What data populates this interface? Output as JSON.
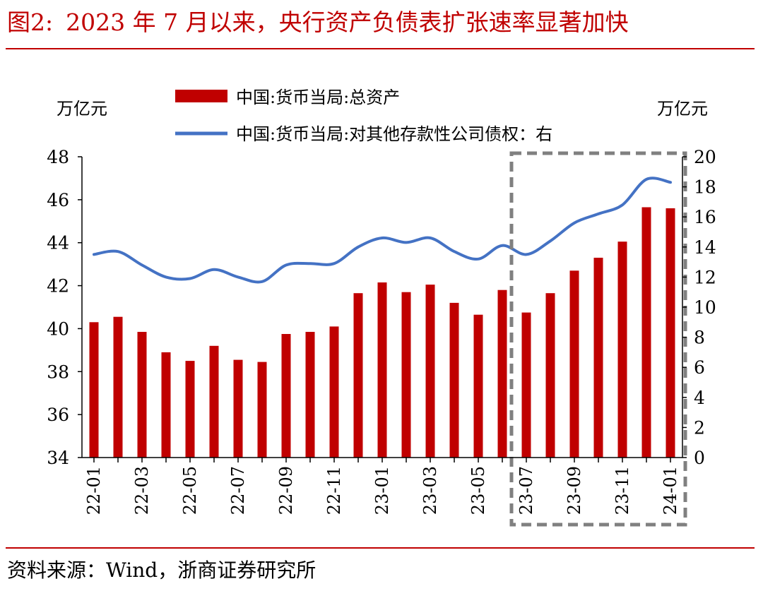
{
  "figure": {
    "number": "图2:",
    "title": "2023 年 7 月以来，央行资产负债表扩张速率显著加快",
    "source": "资料来源：Wind，浙商证券研究所"
  },
  "colors": {
    "bar": "#c00000",
    "line": "#4472c4",
    "title": "#c00000",
    "highlight_box": "#808080"
  },
  "chart_data": {
    "type": "bar",
    "combo": "bar-line dual axis",
    "categories": [
      "22-01",
      "22-02",
      "22-03",
      "22-04",
      "22-05",
      "22-06",
      "22-07",
      "22-08",
      "22-09",
      "22-10",
      "22-11",
      "22-12",
      "23-01",
      "23-02",
      "23-03",
      "23-04",
      "23-05",
      "23-06",
      "23-07",
      "23-08",
      "23-09",
      "23-10",
      "23-11",
      "23-12",
      "24-01"
    ],
    "x_tick_labels": [
      "22-01",
      "22-03",
      "22-05",
      "22-07",
      "22-09",
      "22-11",
      "23-01",
      "23-03",
      "23-05",
      "23-07",
      "23-09",
      "23-11",
      "24-01"
    ],
    "left_axis": {
      "unit": "万亿元",
      "ylim": [
        34,
        48
      ],
      "ticks": [
        34,
        36,
        38,
        40,
        42,
        44,
        46,
        48
      ]
    },
    "right_axis": {
      "unit": "万亿元",
      "ylim": [
        0,
        20
      ],
      "ticks": [
        0,
        2,
        4,
        6,
        8,
        10,
        12,
        14,
        16,
        18,
        20
      ]
    },
    "series": [
      {
        "name": "中国:货币当局:总资产",
        "kind": "bar",
        "axis": "left",
        "values": [
          40.3,
          40.55,
          39.85,
          38.9,
          38.5,
          39.2,
          38.55,
          38.45,
          39.75,
          39.85,
          40.1,
          41.65,
          42.15,
          41.7,
          42.05,
          41.2,
          40.65,
          41.8,
          40.75,
          41.65,
          42.7,
          43.3,
          44.05,
          45.65,
          45.6
        ]
      },
      {
        "name": "中国:货币当局:对其他存款性公司债权：右",
        "kind": "line",
        "axis": "right",
        "values": [
          13.5,
          13.7,
          12.8,
          12.0,
          11.9,
          12.5,
          12.0,
          11.7,
          12.8,
          12.9,
          12.9,
          14.0,
          14.6,
          14.3,
          14.6,
          13.7,
          13.2,
          14.1,
          13.5,
          14.4,
          15.6,
          16.2,
          16.8,
          18.5,
          18.3
        ]
      }
    ],
    "legend_position": "top",
    "grid": false,
    "highlight": {
      "from": "23-07",
      "to": "24-01",
      "style": "dashed box"
    }
  }
}
